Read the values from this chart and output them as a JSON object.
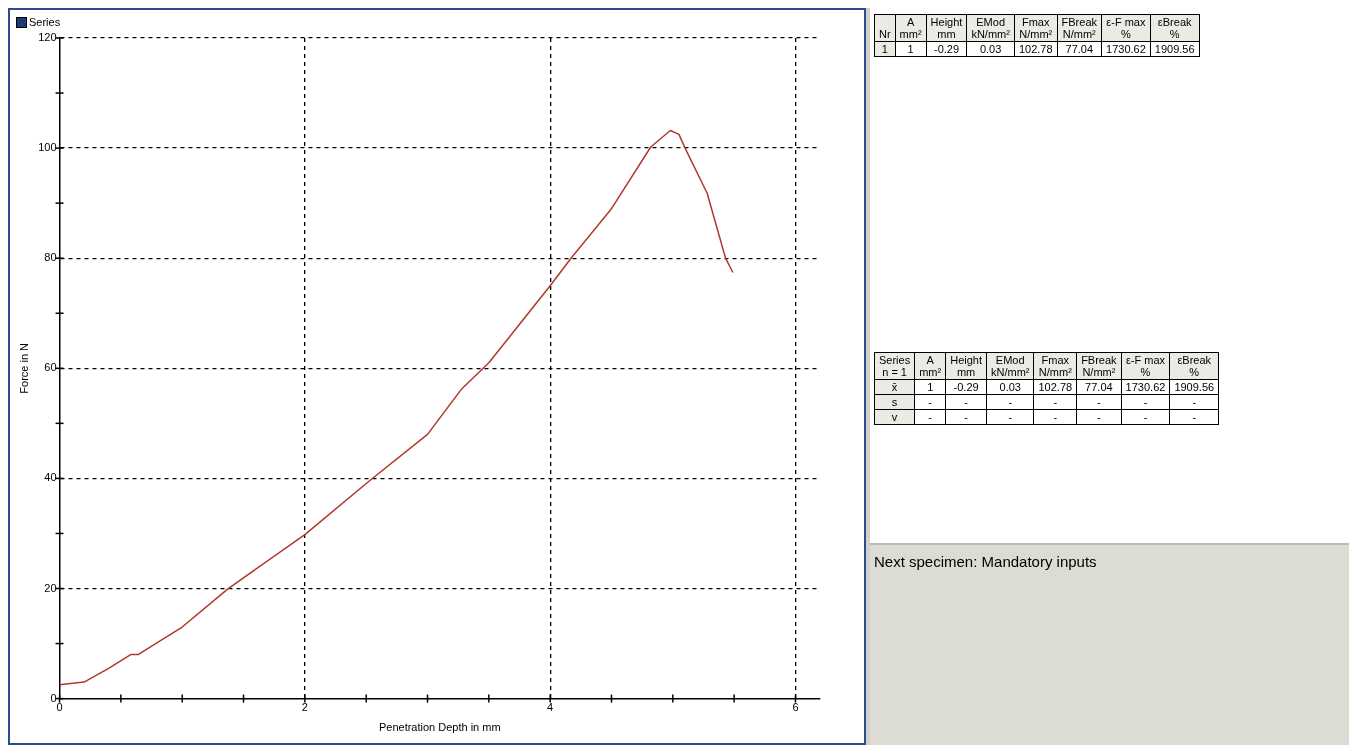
{
  "chart_data": [
    {
      "type": "line",
      "title": "Series",
      "xlabel": "Penetration Depth in mm",
      "ylabel": "Force in N",
      "series": [
        {
          "color": "#b0382c",
          "x": [
            0,
            0.2,
            0.4,
            0.58,
            0.64,
            0.8,
            1.0,
            1.37,
            2.0,
            2.54,
            3.0,
            3.28,
            3.5,
            4.0,
            4.17,
            4.5,
            4.82,
            4.98,
            5.05,
            5.1,
            5.28,
            5.43,
            5.49
          ],
          "values": [
            2.5,
            3.0,
            5.5,
            8.0,
            8.0,
            10.2,
            13,
            19.9,
            29.8,
            39.8,
            48,
            56.3,
            61,
            75,
            80,
            89,
            100.2,
            103.2,
            102.5,
            100,
            91.8,
            80,
            77.4
          ]
        }
      ],
      "xlim": [
        0,
        6.2
      ],
      "ylim": [
        0,
        120
      ],
      "xticks": [
        0,
        {
          "value": 0.5,
          "label": null
        },
        {
          "value": 1,
          "label": null
        },
        {
          "value": 1.5,
          "label": null
        },
        2,
        {
          "value": 2.5,
          "label": null
        },
        {
          "value": 3,
          "label": null
        },
        {
          "value": 3.5,
          "label": null
        },
        4,
        {
          "value": 4.5,
          "label": null
        },
        {
          "value": 5,
          "label": null
        },
        {
          "value": 5.5,
          "label": null
        },
        6
      ],
      "yticks": [
        0,
        {
          "value": 10,
          "label": null
        },
        20,
        {
          "value": 30,
          "label": null
        },
        40,
        {
          "value": 50,
          "label": null
        },
        60,
        {
          "value": 70,
          "label": null
        },
        80,
        {
          "value": 90,
          "label": null
        },
        100,
        {
          "value": 110,
          "label": null
        },
        120
      ],
      "grid": true,
      "legend": false,
      "marker": "none",
      "line_style": "solid"
    },
    {
      "type": "other",
      "annotations": [
        "Nr",
        "A\nmm²",
        "Height\nmm",
        "EMod\nkN/mm²",
        "Fmax\nN/mm²",
        "FBreak\nN/mm²",
        "ε-F max\n%",
        "εBreak\n%",
        "1",
        "1",
        "-0.29",
        "0.03",
        "102.78",
        "77.04",
        "1730.62",
        "1909.56"
      ]
    },
    {
      "type": "other",
      "annotations": [
        "Series\nn = 1",
        "A\nmm²",
        "Height\nmm",
        "EMod\nkN/mm²",
        "Fmax\nN/mm²",
        "FBreak\nN/mm²",
        "ε-F max\n%",
        "εBreak\n%",
        "x̄",
        "1",
        "-0.29",
        "0.03",
        "102.78",
        "77.04",
        "1730.62",
        "1909.56",
        "s",
        "-",
        "-",
        "-",
        "-",
        "-",
        "-",
        "-",
        "v",
        "-",
        "-",
        "-",
        "-",
        "-",
        "-",
        "-"
      ]
    },
    {
      "type": "other",
      "annotations": [
        "Next specimen: Mandatory inputs"
      ]
    }
  ]
}
